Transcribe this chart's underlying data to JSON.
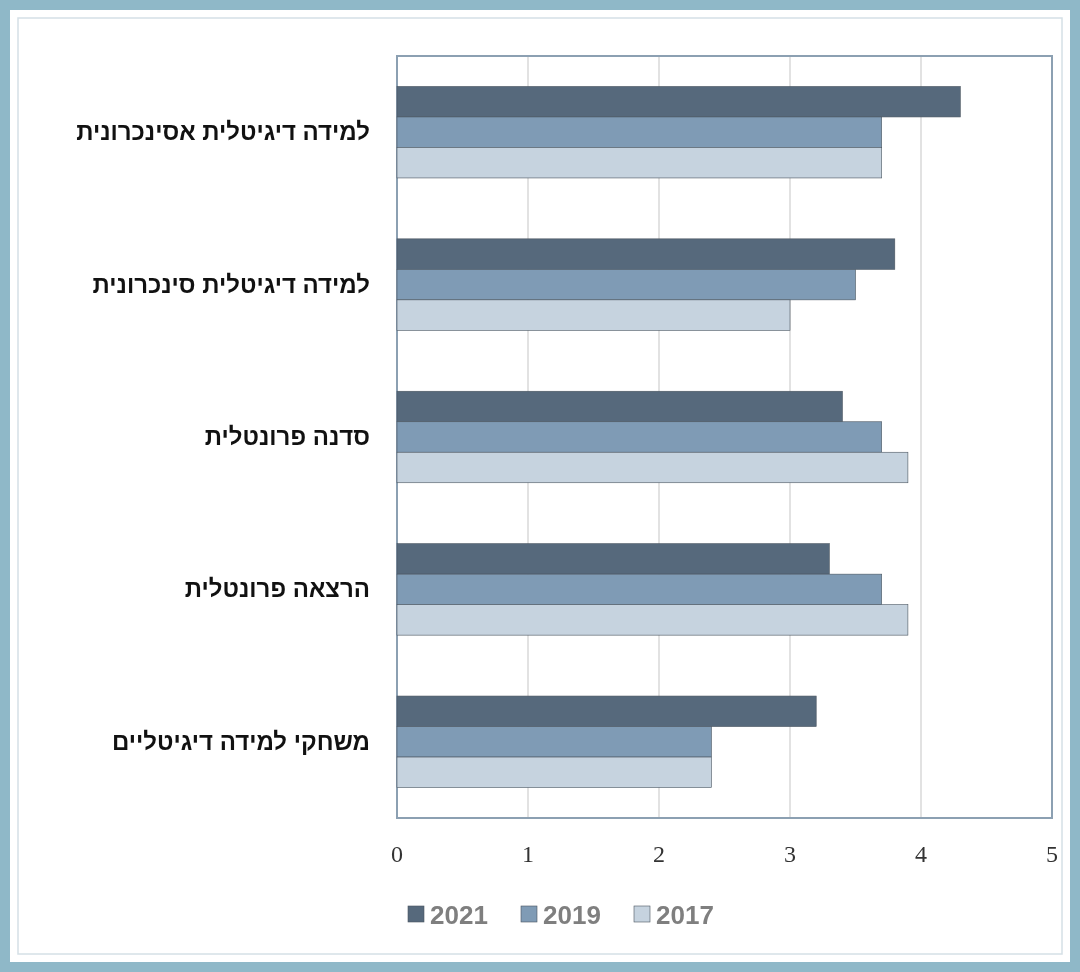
{
  "chart_data": {
    "type": "bar",
    "orientation": "horizontal",
    "categories": [
      "למידה דיגיטלית אסינכרונית",
      "למידה דיגיטלית סינכרונית",
      "סדנה פרונטלית",
      "הרצאה פרונטלית",
      "משחקי למידה דיגיטליים"
    ],
    "series": [
      {
        "name": "2021",
        "color": "#56697c",
        "values": [
          4.3,
          3.8,
          3.4,
          3.3,
          3.2
        ]
      },
      {
        "name": "2019",
        "color": "#7f9bb5",
        "values": [
          3.7,
          3.5,
          3.7,
          3.7,
          2.4
        ]
      },
      {
        "name": "2017",
        "color": "#c6d3df",
        "values": [
          3.7,
          3.0,
          3.9,
          3.9,
          2.4
        ]
      }
    ],
    "xlim": [
      0,
      5
    ],
    "xticks": [
      0,
      1,
      2,
      3,
      4,
      5
    ],
    "grid": "x",
    "legend": "bottom"
  }
}
